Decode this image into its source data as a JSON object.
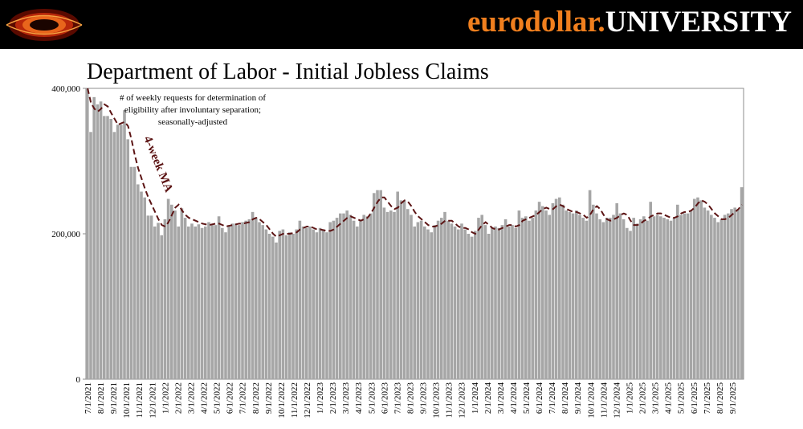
{
  "header": {
    "brand_part1": "eurodollar.",
    "brand_part2": "UNIVERSITY",
    "colors": {
      "background": "#000000",
      "brand_orange": "#f07f1e",
      "brand_white": "#ffffff"
    },
    "logo_icon": "eurodollar-logo-icon"
  },
  "chart_data": {
    "type": "bar",
    "title": "Department of Labor - Initial Jobless Claims",
    "xlabel": "",
    "ylabel": "",
    "ylim": [
      0,
      400000
    ],
    "yticks": [
      0,
      200000,
      400000
    ],
    "ytick_labels": [
      "0",
      "200,000",
      "400,000"
    ],
    "xtick_labels": [
      "7/1/2021",
      "8/1/2021",
      "9/1/2021",
      "10/1/2021",
      "11/1/2021",
      "12/1/2021",
      "1/1/2022",
      "2/1/2022",
      "3/1/2022",
      "4/1/2022",
      "5/1/2022",
      "6/1/2022",
      "7/1/2022",
      "8/1/2022",
      "9/1/2022",
      "10/1/2022",
      "11/1/2022",
      "12/1/2022",
      "1/1/2023",
      "2/1/2023",
      "3/1/2023",
      "4/1/2023",
      "5/1/2023",
      "6/1/2023",
      "7/1/2023",
      "8/1/2023",
      "9/1/2023",
      "10/1/2023",
      "11/1/2023",
      "12/1/2023",
      "1/1/2024",
      "2/1/2024",
      "3/1/2024",
      "4/1/2024",
      "5/1/2024",
      "6/1/2024",
      "7/1/2024",
      "8/1/2024",
      "9/1/2024",
      "10/1/2024",
      "11/1/2024",
      "12/1/2024",
      "1/1/2025",
      "2/1/2025",
      "3/1/2025",
      "4/1/2025",
      "5/1/2025",
      "6/1/2025",
      "7/1/2025",
      "8/1/2025",
      "9/1/2025"
    ],
    "annotation": [
      "# of weekly requests for determination of",
      "eligibility after involuntary separation;",
      "seasonally-adjusted"
    ],
    "ma_label": "4-week MA",
    "grid": false,
    "colors": {
      "bars": "#a6a6a6",
      "ma_line": "#5c1414"
    },
    "series": [
      {
        "kind": "bar",
        "values": [
          400000,
          340000,
          388000,
          378000,
          382000,
          362000,
          362000,
          358000,
          340000,
          350000,
          350000,
          370000,
          330000,
          292000,
          292000,
          268000,
          258000,
          250000,
          225000,
          225000,
          210000,
          215000,
          198000,
          220000,
          248000,
          240000,
          232000,
          210000,
          235000,
          222000,
          210000,
          214000,
          210000,
          213000,
          208000,
          210000,
          216000,
          212000,
          212000,
          224000,
          208000,
          202000,
          212000,
          214000,
          214000,
          212000,
          216000,
          218000,
          220000,
          230000,
          222000,
          216000,
          212000,
          206000,
          200000,
          196000,
          188000,
          204000,
          206000,
          198000,
          202000,
          200000,
          206000,
          218000,
          210000,
          208000,
          210000,
          206000,
          202000,
          208000,
          206000,
          202000,
          216000,
          218000,
          222000,
          228000,
          228000,
          232000,
          226000,
          218000,
          210000,
          218000,
          226000,
          224000,
          228000,
          256000,
          260000,
          260000,
          236000,
          230000,
          232000,
          230000,
          258000,
          246000,
          246000,
          234000,
          226000,
          210000,
          216000,
          218000,
          210000,
          206000,
          202000,
          212000,
          218000,
          222000,
          230000,
          218000,
          214000,
          210000,
          206000,
          214000,
          206000,
          200000,
          196000,
          204000,
          222000,
          226000,
          212000,
          200000,
          208000,
          210000,
          208000,
          212000,
          220000,
          210000,
          212000,
          208000,
          232000,
          222000,
          224000,
          218000,
          222000,
          232000,
          244000,
          238000,
          232000,
          226000,
          242000,
          248000,
          250000,
          240000,
          232000,
          230000,
          228000,
          232000,
          226000,
          222000,
          218000,
          260000,
          240000,
          228000,
          220000,
          216000,
          222000,
          222000,
          226000,
          242000,
          228000,
          220000,
          208000,
          204000,
          222000,
          214000,
          220000,
          224000,
          218000,
          244000,
          224000,
          226000,
          224000,
          222000,
          220000,
          218000,
          222000,
          240000,
          226000,
          228000,
          228000,
          232000,
          248000,
          250000,
          246000,
          236000,
          232000,
          226000,
          222000,
          216000,
          220000,
          226000,
          228000,
          234000,
          236000,
          234000,
          264000
        ]
      },
      {
        "kind": "line",
        "name": "4-week MA",
        "values": [
          400000,
          380000,
          372000,
          368000,
          372000,
          378000,
          375000,
          366000,
          358000,
          350000,
          352000,
          354000,
          348000,
          330000,
          308000,
          290000,
          276000,
          262000,
          250000,
          240000,
          230000,
          220000,
          212000,
          210000,
          216000,
          226000,
          236000,
          240000,
          232000,
          226000,
          222000,
          220000,
          218000,
          216000,
          214000,
          213000,
          212000,
          213000,
          214000,
          214000,
          212000,
          210000,
          211000,
          212000,
          213000,
          214000,
          214000,
          215000,
          216000,
          220000,
          222000,
          220000,
          216000,
          212000,
          206000,
          200000,
          196000,
          198000,
          200000,
          200000,
          200000,
          201000,
          202000,
          206000,
          208000,
          210000,
          210000,
          208000,
          206000,
          206000,
          205000,
          204000,
          204000,
          206000,
          210000,
          214000,
          218000,
          222000,
          224000,
          222000,
          220000,
          218000,
          220000,
          222000,
          228000,
          236000,
          244000,
          250000,
          250000,
          244000,
          238000,
          234000,
          236000,
          242000,
          246000,
          244000,
          238000,
          230000,
          224000,
          220000,
          216000,
          212000,
          210000,
          210000,
          212000,
          214000,
          218000,
          218000,
          218000,
          214000,
          210000,
          208000,
          208000,
          206000,
          202000,
          200000,
          206000,
          212000,
          216000,
          212000,
          208000,
          206000,
          206000,
          208000,
          210000,
          212000,
          212000,
          210000,
          212000,
          218000,
          220000,
          222000,
          224000,
          226000,
          230000,
          234000,
          236000,
          234000,
          234000,
          238000,
          240000,
          238000,
          234000,
          232000,
          230000,
          230000,
          228000,
          226000,
          222000,
          226000,
          234000,
          238000,
          234000,
          226000,
          220000,
          218000,
          220000,
          222000,
          226000,
          228000,
          226000,
          218000,
          212000,
          212000,
          214000,
          218000,
          220000,
          224000,
          226000,
          228000,
          228000,
          226000,
          224000,
          222000,
          222000,
          224000,
          228000,
          230000,
          230000,
          232000,
          236000,
          242000,
          246000,
          244000,
          240000,
          234000,
          228000,
          224000,
          220000,
          220000,
          222000,
          226000,
          230000,
          234000,
          240000
        ]
      }
    ]
  }
}
